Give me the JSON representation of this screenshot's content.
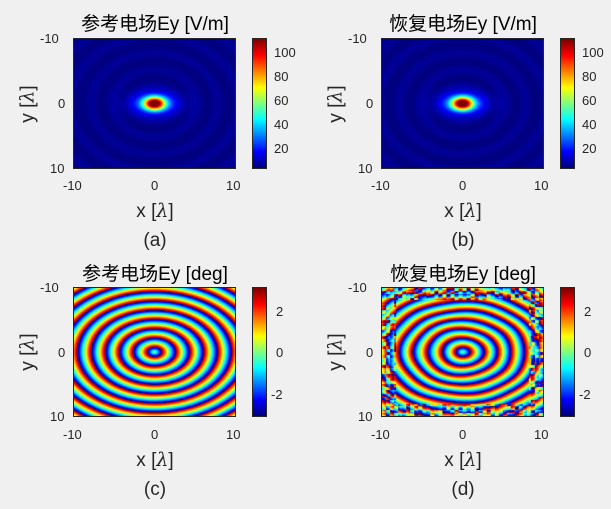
{
  "chart_data": [
    {
      "type": "heatmap",
      "title": "参考电场Ey [V/m]",
      "xlabel": "x [λ]",
      "ylabel": "y [λ]",
      "caption": "(a)",
      "xlim": [
        -10,
        10
      ],
      "ylim": [
        -10,
        10
      ],
      "xticks": [
        "-10",
        "0",
        "10"
      ],
      "yticks": [
        "-10",
        "0",
        "10"
      ],
      "colorbar_ticks": [
        "20",
        "40",
        "60",
        "80",
        "100"
      ],
      "clim": [
        5,
        115
      ],
      "colormap": "jet",
      "field": "amplitude",
      "peak_value": 110,
      "peak_location": [
        0,
        0
      ]
    },
    {
      "type": "heatmap",
      "title": "恢复电场Ey [V/m]",
      "xlabel": "x [λ]",
      "ylabel": "y [λ]",
      "caption": "(b)",
      "xlim": [
        -10,
        10
      ],
      "ylim": [
        -10,
        10
      ],
      "xticks": [
        "-10",
        "0",
        "10"
      ],
      "yticks": [
        "-10",
        "0",
        "10"
      ],
      "colorbar_ticks": [
        "20",
        "40",
        "60",
        "80",
        "100"
      ],
      "clim": [
        5,
        115
      ],
      "colormap": "jet",
      "field": "amplitude",
      "peak_value": 110,
      "peak_location": [
        0,
        0
      ]
    },
    {
      "type": "heatmap",
      "title": "参考电场Ey [deg]",
      "xlabel": "x [λ]",
      "ylabel": "y [λ]",
      "caption": "(c)",
      "xlim": [
        -10,
        10
      ],
      "ylim": [
        -10,
        10
      ],
      "xticks": [
        "-10",
        "0",
        "10"
      ],
      "yticks": [
        "-10",
        "0",
        "10"
      ],
      "colorbar_ticks": [
        "2",
        "0",
        "-2"
      ],
      "clim": [
        -3.14,
        3.14
      ],
      "colormap": "jet",
      "field": "phase"
    },
    {
      "type": "heatmap",
      "title": "恢复电场Ey [deg]",
      "xlabel": "x [λ]",
      "ylabel": "y [λ]",
      "caption": "(d)",
      "xlim": [
        -10,
        10
      ],
      "ylim": [
        -10,
        10
      ],
      "xticks": [
        "-10",
        "0",
        "10"
      ],
      "yticks": [
        "-10",
        "0",
        "10"
      ],
      "colorbar_ticks": [
        "2",
        "0",
        "-2"
      ],
      "clim": [
        -3.14,
        3.14
      ],
      "colormap": "jet",
      "field": "phase"
    }
  ]
}
